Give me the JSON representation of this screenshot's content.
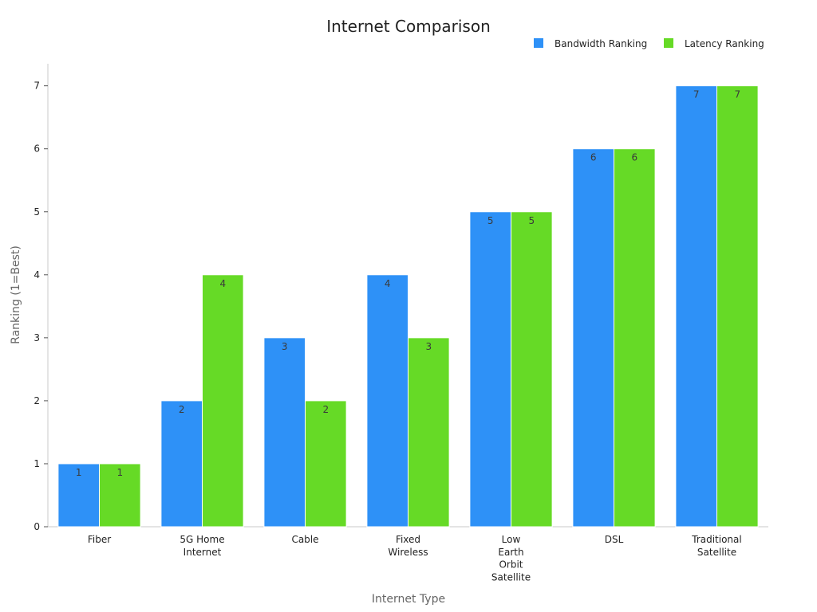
{
  "chart_data": {
    "type": "bar",
    "title": "Internet Comparison",
    "xlabel": "Internet Type",
    "ylabel": "Ranking (1=Best)",
    "ylim": [
      0,
      7.35
    ],
    "yticks": [
      0,
      1,
      2,
      3,
      4,
      5,
      6,
      7
    ],
    "grid": false,
    "legend_position": "top-right",
    "categories": [
      [
        "Fiber"
      ],
      [
        "5G Home",
        "Internet"
      ],
      [
        "Cable"
      ],
      [
        "Fixed",
        "Wireless"
      ],
      [
        "Low",
        "Earth",
        "Orbit",
        "Satellite"
      ],
      [
        "DSL"
      ],
      [
        "Traditional",
        "Satellite"
      ]
    ],
    "series": [
      {
        "name": "Bandwidth Ranking",
        "color": "#2E91F7",
        "values": [
          1,
          2,
          3,
          4,
          5,
          6,
          7
        ]
      },
      {
        "name": "Latency Ranking",
        "color": "#66DA26",
        "values": [
          1,
          4,
          2,
          3,
          5,
          6,
          7
        ]
      }
    ]
  }
}
